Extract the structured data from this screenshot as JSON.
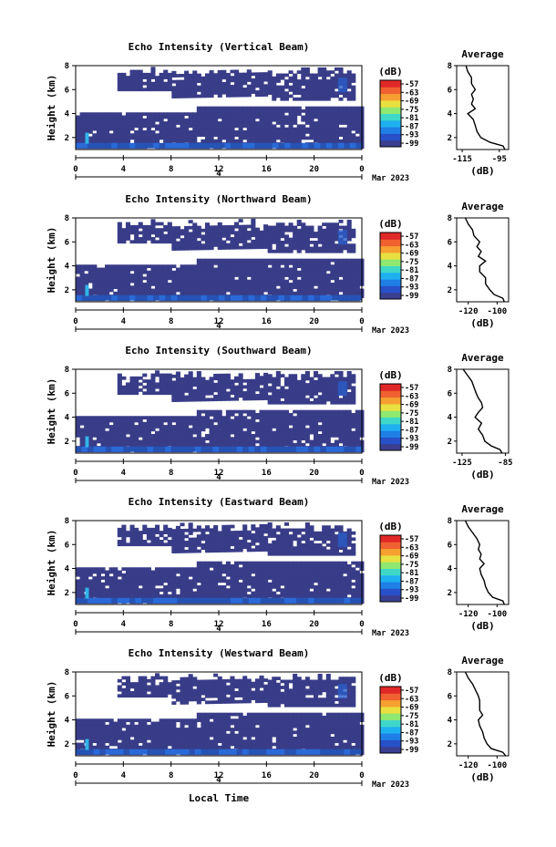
{
  "figure": {
    "xlabel": "Local Time",
    "x_ticks": [
      "0",
      "4",
      "8",
      "12",
      "16",
      "20",
      "0"
    ],
    "day_marker": "4",
    "date": "Mar 2023",
    "ylabel": "Height (km)",
    "y_ticks": [
      "2",
      "4",
      "6",
      "8"
    ],
    "colorbar_unit": "(dB)",
    "colorbar_ticks": [
      "-57",
      "-63",
      "-69",
      "-75",
      "-81",
      "-87",
      "-93",
      "-99"
    ],
    "colorbar_colors": [
      "#3a3f8f",
      "#2850c8",
      "#1f7fe6",
      "#1fb0f0",
      "#3fd8c8",
      "#8fe870",
      "#e8e040",
      "#f5a030",
      "#f06030",
      "#e02828"
    ],
    "avg_title": "Average",
    "avg_xlabel": "(dB)"
  },
  "chart_data": [
    {
      "type": "heatmap",
      "title": "Echo Intensity (Vertical Beam)",
      "xlim": [
        0,
        24
      ],
      "ylim": [
        1,
        8
      ],
      "zlim": [
        -99,
        -57
      ],
      "average_profile": {
        "title": "Average",
        "xlabel": "(dB)",
        "xticks": [
          "-115",
          "-95"
        ],
        "xlim": [
          -118,
          -90
        ],
        "height": [
          1.0,
          1.3,
          1.6,
          2.0,
          2.5,
          3.0,
          3.5,
          4.0,
          4.4,
          4.8,
          5.2,
          5.6,
          6.0,
          6.5,
          7.0,
          7.5,
          8.0
        ],
        "value": [
          -92,
          -93,
          -100,
          -105,
          -107,
          -108,
          -109,
          -112,
          -108,
          -110,
          -109,
          -110,
          -108,
          -110,
          -110,
          -112,
          -113
        ]
      }
    },
    {
      "type": "heatmap",
      "title": "Echo Intensity (Northward Beam)",
      "xlim": [
        0,
        24
      ],
      "ylim": [
        1,
        8
      ],
      "zlim": [
        -99,
        -57
      ],
      "average_profile": {
        "title": "Average",
        "xlabel": "(dB)",
        "xticks": [
          "-120",
          "-100"
        ],
        "xlim": [
          -128,
          -92
        ],
        "height": [
          1.0,
          1.3,
          1.6,
          2.0,
          2.5,
          3.0,
          3.5,
          4.0,
          4.4,
          4.8,
          5.2,
          5.6,
          6.0,
          6.5,
          7.0,
          7.5,
          8.0
        ],
        "value": [
          -95,
          -96,
          -102,
          -105,
          -108,
          -108,
          -112,
          -112,
          -108,
          -113,
          -111,
          -114,
          -112,
          -116,
          -117,
          -120,
          -122
        ]
      }
    },
    {
      "type": "heatmap",
      "title": "Echo Intensity (Southward Beam)",
      "xlim": [
        0,
        24
      ],
      "ylim": [
        1,
        8
      ],
      "zlim": [
        -99,
        -57
      ],
      "average_profile": {
        "title": "Average",
        "xlabel": "(dB)",
        "xticks": [
          "-125",
          "-85"
        ],
        "xlim": [
          -130,
          -82
        ],
        "height": [
          1.0,
          1.3,
          1.6,
          2.0,
          2.5,
          3.0,
          3.5,
          4.0,
          4.4,
          4.8,
          5.2,
          5.6,
          6.0,
          6.5,
          7.0,
          7.5,
          8.0
        ],
        "value": [
          -88,
          -90,
          -98,
          -104,
          -106,
          -110,
          -107,
          -113,
          -110,
          -106,
          -107,
          -110,
          -112,
          -114,
          -116,
          -120,
          -124
        ]
      }
    },
    {
      "type": "heatmap",
      "title": "Echo Intensity (Eastward Beam)",
      "xlim": [
        0,
        24
      ],
      "ylim": [
        1,
        8
      ],
      "zlim": [
        -99,
        -57
      ],
      "average_profile": {
        "title": "Average",
        "xlabel": "(dB)",
        "xticks": [
          "-120",
          "-100"
        ],
        "xlim": [
          -128,
          -92
        ],
        "height": [
          1.0,
          1.3,
          1.6,
          2.0,
          2.5,
          3.0,
          3.5,
          4.0,
          4.4,
          4.8,
          5.2,
          5.6,
          6.0,
          6.5,
          7.0,
          7.5,
          8.0
        ],
        "value": [
          -95,
          -96,
          -103,
          -106,
          -108,
          -109,
          -111,
          -112,
          -109,
          -112,
          -111,
          -113,
          -112,
          -114,
          -117,
          -120,
          -122
        ]
      }
    },
    {
      "type": "heatmap",
      "title": "Echo Intensity (Westward Beam)",
      "xlim": [
        0,
        24
      ],
      "ylim": [
        1,
        8
      ],
      "zlim": [
        -99,
        -57
      ],
      "average_profile": {
        "title": "Average",
        "xlabel": "(dB)",
        "xticks": [
          "-120",
          "-100"
        ],
        "xlim": [
          -128,
          -92
        ],
        "height": [
          1.0,
          1.3,
          1.6,
          2.0,
          2.5,
          3.0,
          3.5,
          4.0,
          4.4,
          4.8,
          5.2,
          5.6,
          6.0,
          6.5,
          7.0,
          7.5,
          8.0
        ],
        "value": [
          -94,
          -96,
          -104,
          -107,
          -109,
          -110,
          -112,
          -113,
          -110,
          -112,
          -112,
          -112,
          -113,
          -115,
          -117,
          -120,
          -122
        ]
      }
    }
  ]
}
